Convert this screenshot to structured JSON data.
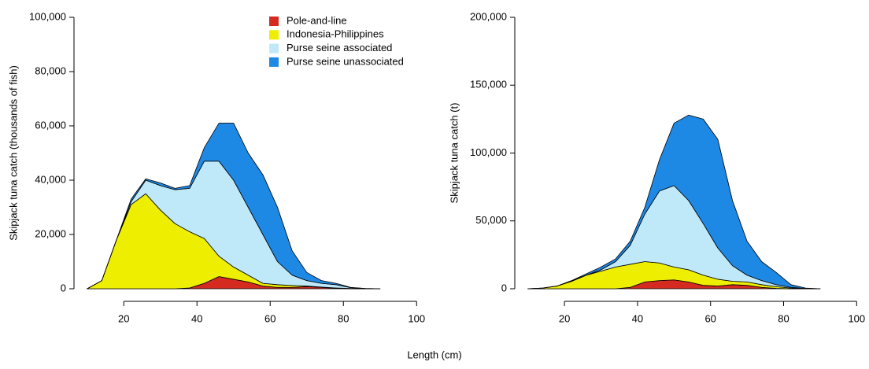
{
  "chart_data": [
    {
      "type": "stacked_area",
      "ylabel": "Skipjack tuna catch (thousands of fish)",
      "xlabel": "Length (cm)",
      "x": [
        10,
        14,
        18,
        22,
        26,
        30,
        34,
        38,
        42,
        46,
        50,
        54,
        58,
        62,
        66,
        70,
        74,
        78,
        82,
        86,
        90
      ],
      "series": [
        {
          "name": "Pole-and-line",
          "color": "#d42a20",
          "values": [
            0,
            0,
            0,
            0,
            0,
            0,
            0,
            300,
            2000,
            4500,
            3500,
            2500,
            1000,
            500,
            500,
            800,
            500,
            200,
            0,
            0,
            0
          ]
        },
        {
          "name": "Indonesia-Philippines",
          "color": "#eeee00",
          "values": [
            0,
            3000,
            18000,
            31000,
            35000,
            29000,
            24000,
            20700,
            16500,
            7500,
            4500,
            2500,
            1000,
            1000,
            700,
            200,
            100,
            100,
            100,
            0,
            0
          ]
        },
        {
          "name": "Purse seine associated",
          "color": "#bfe9f9",
          "values": [
            0,
            0,
            0,
            1000,
            5000,
            9000,
            12500,
            16000,
            28500,
            35000,
            32000,
            25000,
            18000,
            8500,
            3800,
            2000,
            1400,
            1200,
            300,
            100,
            0
          ]
        },
        {
          "name": "Purse seine unassociated",
          "color": "#1e88e5",
          "values": [
            0,
            0,
            0,
            1000,
            500,
            1000,
            500,
            1000,
            5000,
            14000,
            21000,
            20000,
            22000,
            20000,
            9000,
            3000,
            1000,
            500,
            100,
            0,
            0
          ]
        }
      ],
      "xlim": [
        6.4,
        103.6
      ],
      "xticks": [
        20,
        40,
        60,
        80,
        100
      ],
      "ylim": [
        0,
        100000
      ],
      "yticks": [
        0,
        {
          "value": 20000,
          "label": "20,000"
        },
        {
          "value": 40000,
          "label": "40,000"
        },
        {
          "value": 60000,
          "label": "60,000"
        },
        {
          "value": 80000,
          "label": "80,000"
        },
        {
          "value": 100000,
          "label": "100,000"
        }
      ],
      "legend": "top"
    },
    {
      "type": "stacked_area",
      "ylabel": "Skipjack tuna catch (t)",
      "x": [
        10,
        14,
        18,
        22,
        26,
        30,
        34,
        38,
        42,
        46,
        50,
        54,
        58,
        62,
        66,
        70,
        74,
        78,
        82,
        86,
        90
      ],
      "series": [
        {
          "color": "#d42a20",
          "values": [
            0,
            0,
            0,
            0,
            0,
            0,
            0,
            1000,
            5000,
            6000,
            6500,
            5000,
            2500,
            2000,
            3000,
            2500,
            1000,
            300,
            0,
            0,
            0
          ]
        },
        {
          "color": "#eeee00",
          "values": [
            0,
            500,
            2000,
            5500,
            10000,
            13000,
            16000,
            17000,
            15000,
            13000,
            9500,
            9000,
            7500,
            5000,
            2500,
            2500,
            2000,
            1200,
            500,
            100,
            0
          ]
        },
        {
          "color": "#bfe9f9",
          "values": [
            0,
            0,
            0,
            500,
            0,
            1000,
            4000,
            14000,
            35000,
            53000,
            60000,
            51000,
            38000,
            23000,
            11500,
            5000,
            3000,
            1500,
            500,
            100,
            0
          ]
        },
        {
          "color": "#1e88e5",
          "values": [
            0,
            0,
            0,
            0,
            1000,
            2000,
            2000,
            3000,
            5000,
            23000,
            46000,
            63000,
            77000,
            80000,
            48000,
            25000,
            14000,
            9000,
            2000,
            300,
            0
          ]
        }
      ],
      "xlim": [
        6.4,
        103.6
      ],
      "xticks": [
        20,
        40,
        60,
        80,
        100
      ],
      "ylim": [
        0,
        200000
      ],
      "yticks": [
        0,
        {
          "value": 50000,
          "label": "50,000"
        },
        {
          "value": 100000,
          "label": "100,000"
        },
        {
          "value": 150000,
          "label": "150,000"
        },
        {
          "value": 200000,
          "label": "200,000"
        }
      ]
    }
  ]
}
